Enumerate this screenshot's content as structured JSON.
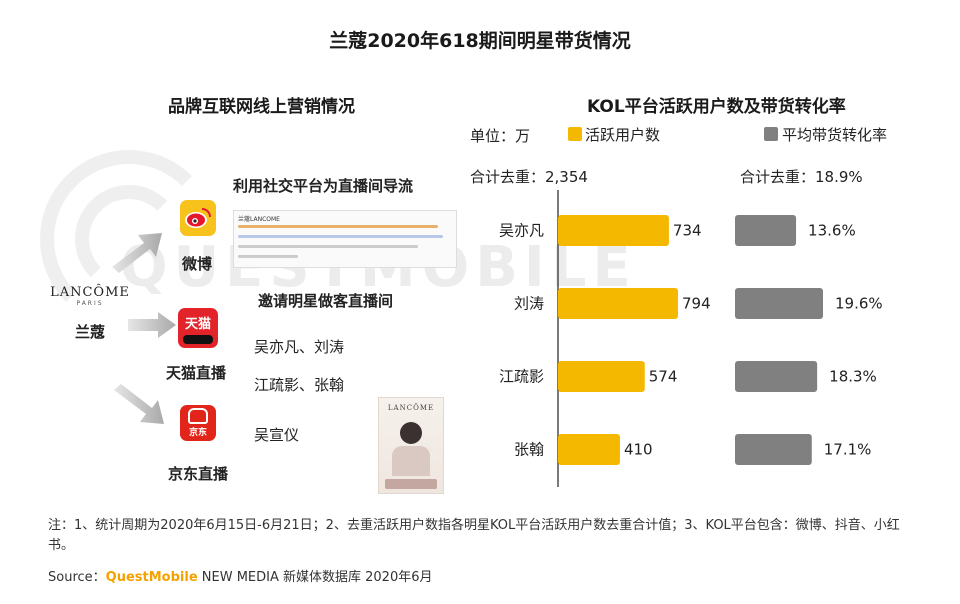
{
  "title": "兰蔻2020年618期间明星带货情况",
  "left_panel": {
    "subtitle": "品牌互联网线上营销情况",
    "brand_logo": "LANCÔME",
    "brand_logo_sub": "PARIS",
    "brand_name": "兰蔻",
    "section1_heading": "利用社交平台为直播间导流",
    "section2_heading": "邀请明星做客直播间",
    "platforms": [
      {
        "label": "微博",
        "icon": "weibo-icon"
      },
      {
        "label": "天猫直播",
        "icon": "tmall-icon",
        "icon_text": "天猫"
      },
      {
        "label": "京东直播",
        "icon": "jd-icon",
        "icon_text": "京东"
      }
    ],
    "stars": [
      "吴亦凡、刘涛",
      "江疏影、张翰",
      "吴宣仪"
    ],
    "weibo_post_name": "兰蔻LANCOME",
    "poster_logo": "LANCÔME"
  },
  "right_panel": {
    "subtitle": "KOL平台活跃用户数及带货转化率",
    "unit_label": "单位：万",
    "total_users_label": "合计去重：2,354",
    "total_rate_label": "合计去重：18.9%"
  },
  "chart_data": {
    "type": "bar",
    "title": "KOL平台活跃用户数及带货转化率",
    "categories": [
      "吴亦凡",
      "刘涛",
      "江疏影",
      "张翰"
    ],
    "series": [
      {
        "name": "活跃用户数",
        "unit": "万",
        "values": [
          734,
          794,
          574,
          410
        ],
        "labels": [
          "734",
          "794",
          "574",
          "410"
        ],
        "color": "#f5b800"
      },
      {
        "name": "平均带货转化率",
        "unit": "%",
        "values": [
          13.6,
          19.6,
          18.3,
          17.1
        ],
        "labels": [
          "13.6%",
          "19.6%",
          "18.3%",
          "17.1%"
        ],
        "color": "#808080"
      }
    ],
    "orientation": "horizontal"
  },
  "watermark": "QUESTMOBILE",
  "footer": {
    "note": "注：1、统计周期为2020年6月15日-6月21日；2、去重活跃用户数指各明星KOL平台活跃用户数去重合计值；3、KOL平台包含：微博、抖音、小红书。",
    "source_prefix": "Source：",
    "source_brand": "QuestMobile",
    "source_rest": " NEW MEDIA 新媒体数据库 2020年6月"
  }
}
